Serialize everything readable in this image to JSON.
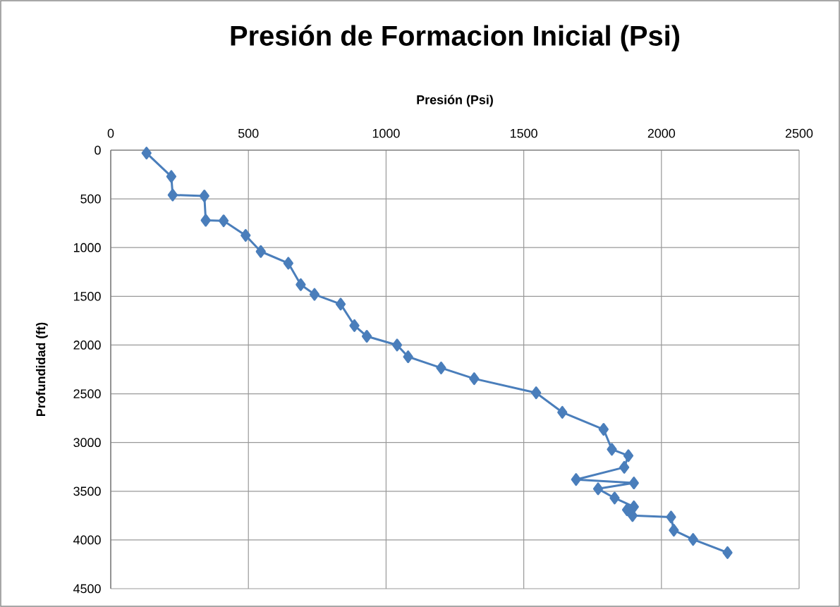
{
  "chart_data": {
    "type": "line",
    "title": "Presión de Formacion Inicial (Psi)",
    "xlabel": "Presión (Psi)",
    "ylabel": "Profundidad (ft)",
    "xlim": [
      0,
      2500
    ],
    "xticks": [
      0,
      500,
      1000,
      1500,
      2000,
      2500
    ],
    "ylim": [
      4500,
      0
    ],
    "yticks": [
      0,
      500,
      1000,
      1500,
      2000,
      2500,
      3000,
      3500,
      4000,
      4500
    ],
    "grid": true,
    "marker": "diamond",
    "line_style": "solid",
    "series": [
      {
        "color": "#4a7ebb",
        "x": [
          130,
          220,
          225,
          340,
          345,
          410,
          490,
          545,
          645,
          690,
          740,
          835,
          885,
          930,
          1040,
          1080,
          1200,
          1320,
          1545,
          1640,
          1790,
          1820,
          1880,
          1865,
          1690,
          1900,
          1770,
          1830,
          1900,
          1875,
          1895,
          2035,
          2045,
          2115,
          2240
        ],
        "values": [
          30,
          270,
          460,
          470,
          720,
          725,
          875,
          1040,
          1160,
          1380,
          1480,
          1580,
          1800,
          1910,
          2000,
          2120,
          2235,
          2345,
          2490,
          2690,
          2865,
          3070,
          3135,
          3255,
          3380,
          3415,
          3475,
          3570,
          3660,
          3690,
          3750,
          3765,
          3900,
          3995,
          4130
        ]
      }
    ]
  }
}
